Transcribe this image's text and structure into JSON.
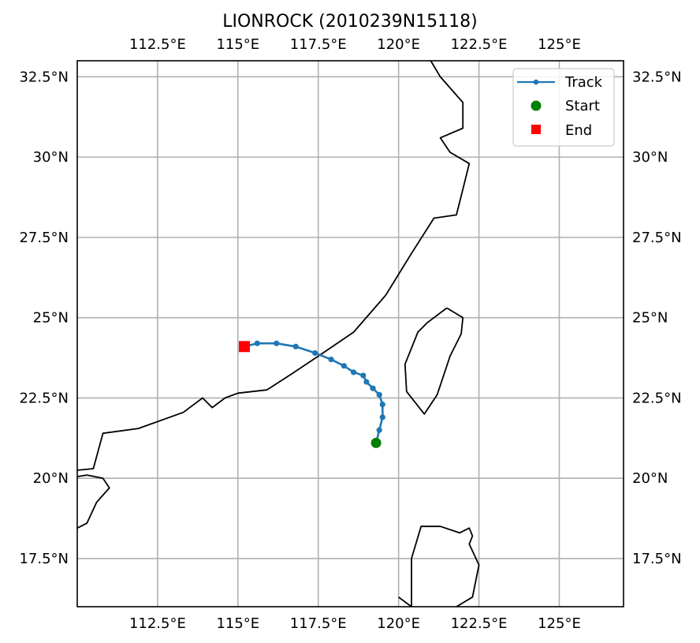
{
  "title": "LIONROCK (2010239N15118)",
  "map": {
    "extent": {
      "lon": [
        110,
        127
      ],
      "lat": [
        16,
        33
      ]
    },
    "colors": {
      "track": "#1f77b4",
      "start": "#008000",
      "end": "#ff0000",
      "grid": "#b0b0b0"
    },
    "grid": true,
    "xticks": [
      {
        "value": 112.5,
        "label": "112.5°E"
      },
      {
        "value": 115,
        "label": "115°E"
      },
      {
        "value": 117.5,
        "label": "117.5°E"
      },
      {
        "value": 120,
        "label": "120°E"
      },
      {
        "value": 122.5,
        "label": "122.5°E"
      },
      {
        "value": 125,
        "label": "125°E"
      }
    ],
    "yticks": [
      {
        "value": 32.5,
        "label": "32.5°N"
      },
      {
        "value": 30,
        "label": "30°N"
      },
      {
        "value": 27.5,
        "label": "27.5°N"
      },
      {
        "value": 25,
        "label": "25°N"
      },
      {
        "value": 22.5,
        "label": "22.5°N"
      },
      {
        "value": 20,
        "label": "20°N"
      },
      {
        "value": 17.5,
        "label": "17.5°N"
      }
    ]
  },
  "legend": {
    "position": "top-right",
    "items": [
      {
        "key": "track",
        "label": "Track"
      },
      {
        "key": "start",
        "label": "Start"
      },
      {
        "key": "end",
        "label": "End"
      }
    ]
  },
  "chart_data": {
    "type": "scatter",
    "title": "LIONROCK (2010239N15118)",
    "series": [
      {
        "name": "Track",
        "points": [
          [
            119.3,
            21.1
          ],
          [
            119.4,
            21.5
          ],
          [
            119.5,
            21.9
          ],
          [
            119.5,
            22.3
          ],
          [
            119.4,
            22.6
          ],
          [
            119.2,
            22.8
          ],
          [
            119.0,
            23.0
          ],
          [
            118.9,
            23.2
          ],
          [
            118.6,
            23.3
          ],
          [
            118.3,
            23.5
          ],
          [
            117.9,
            23.7
          ],
          [
            117.4,
            23.9
          ],
          [
            116.8,
            24.1
          ],
          [
            116.2,
            24.2
          ],
          [
            115.6,
            24.2
          ],
          [
            115.2,
            24.1
          ]
        ]
      }
    ],
    "start": {
      "label": "Start",
      "point": [
        119.3,
        21.1
      ]
    },
    "end": {
      "label": "End",
      "point": [
        115.2,
        24.1
      ]
    }
  },
  "coastlines": [
    {
      "id": "mainland",
      "points": [
        [
          121.0,
          33.0
        ],
        [
          121.3,
          32.5
        ],
        [
          122.0,
          31.7
        ],
        [
          122.0,
          30.9
        ],
        [
          121.3,
          30.6
        ],
        [
          121.6,
          30.15
        ],
        [
          122.2,
          29.8
        ],
        [
          122.0,
          29.0
        ],
        [
          121.8,
          28.2
        ],
        [
          121.1,
          28.1
        ],
        [
          120.4,
          27.0
        ],
        [
          119.6,
          25.7
        ],
        [
          118.6,
          24.55
        ],
        [
          117.5,
          23.8
        ],
        [
          116.6,
          23.2
        ],
        [
          115.9,
          22.75
        ],
        [
          115.0,
          22.65
        ],
        [
          114.6,
          22.5
        ],
        [
          114.2,
          22.2
        ],
        [
          113.9,
          22.5
        ],
        [
          113.3,
          22.05
        ],
        [
          111.9,
          21.55
        ],
        [
          110.8,
          21.4
        ],
        [
          110.5,
          20.3
        ],
        [
          110.0,
          20.25
        ]
      ]
    },
    {
      "id": "hainan",
      "points": [
        [
          110.0,
          20.05
        ],
        [
          110.3,
          20.1
        ],
        [
          110.8,
          20.0
        ],
        [
          111.0,
          19.7
        ],
        [
          110.6,
          19.25
        ],
        [
          110.3,
          18.6
        ],
        [
          110.0,
          18.45
        ]
      ]
    },
    {
      "id": "taiwan",
      "points": [
        [
          121.5,
          25.3
        ],
        [
          120.9,
          24.85
        ],
        [
          120.6,
          24.55
        ],
        [
          120.2,
          23.55
        ],
        [
          120.25,
          22.7
        ],
        [
          120.8,
          22.0
        ],
        [
          121.2,
          22.6
        ],
        [
          121.6,
          23.8
        ],
        [
          121.95,
          24.5
        ],
        [
          122.0,
          25.0
        ],
        [
          121.5,
          25.3
        ]
      ]
    },
    {
      "id": "luzon",
      "points": [
        [
          120.0,
          16.3
        ],
        [
          120.4,
          16.0
        ]
      ]
    },
    {
      "id": "luzon2",
      "points": [
        [
          120.4,
          16.0
        ],
        [
          120.4,
          17.5
        ],
        [
          120.7,
          18.5
        ],
        [
          121.3,
          18.5
        ],
        [
          121.9,
          18.3
        ],
        [
          122.2,
          18.45
        ],
        [
          122.3,
          18.2
        ],
        [
          122.2,
          17.95
        ],
        [
          122.5,
          17.3
        ],
        [
          122.3,
          16.3
        ],
        [
          121.8,
          16.0
        ]
      ]
    }
  ]
}
